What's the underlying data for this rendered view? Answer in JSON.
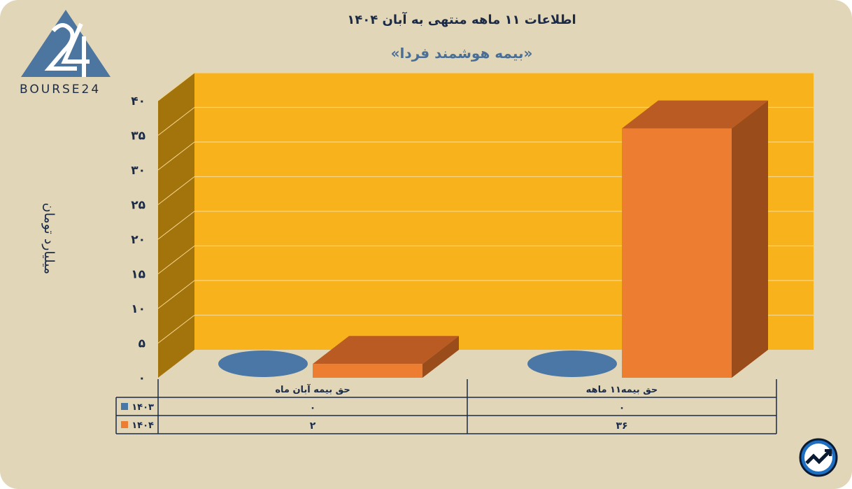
{
  "header": {
    "title": "اطلاعات ۱۱ ماهه منتهی به آبان ۱۴۰۴",
    "subtitle": "«بیمه هوشمند فردا»"
  },
  "brand": {
    "logo_text": "BOURSE24",
    "logo_mark": "24"
  },
  "chart_data": {
    "type": "bar",
    "ylabel": "میلیارد تومان",
    "ylim": [
      0,
      40
    ],
    "yticks": [
      "۰",
      "۵",
      "۱۰",
      "۱۵",
      "۲۰",
      "۲۵",
      "۳۰",
      "۳۵",
      "۴۰"
    ],
    "categories": [
      "حق بیمه آبان ماه",
      "حق بیمه۱۱ ماهه"
    ],
    "series": [
      {
        "name": "۱۴۰۳",
        "values": [
          0,
          0
        ],
        "labels": [
          "۰",
          "۰"
        ],
        "color": "#4a77a6"
      },
      {
        "name": "۱۴۰۴",
        "values": [
          2,
          36
        ],
        "labels": [
          "۲",
          "۳۶"
        ],
        "color": "#ed7d31"
      }
    ],
    "grid": true,
    "legend": "data-table",
    "colors": {
      "wall": "#f7b21c",
      "side_wall": "#a3740c",
      "grid": "#f5d58a"
    }
  }
}
